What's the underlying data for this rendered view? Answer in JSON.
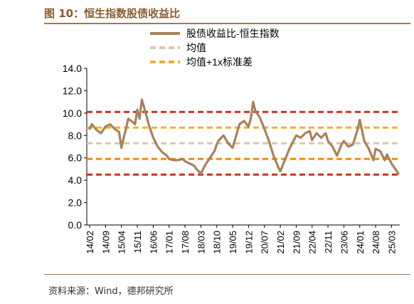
{
  "figure": {
    "title": "图 10：恒生指数股债收益比",
    "source": "资料来源：Wind，德邦研究所"
  },
  "colors": {
    "series": "#A8825A",
    "mean": "#D9C9A8",
    "upper_band": "#F0B030",
    "inner_band": "#F08C10",
    "outer_band": "#C8321E",
    "title": "#8B5A2B"
  },
  "chart_data": {
    "type": "line",
    "ylim": [
      0.0,
      14.0
    ],
    "yticks": [
      "0.0",
      "2.0",
      "4.0",
      "6.0",
      "8.0",
      "10.0",
      "12.0",
      "14.0"
    ],
    "xticks": [
      "14/02",
      "14/09",
      "15/04",
      "15/11",
      "16/06",
      "17/01",
      "17/08",
      "18/03",
      "18/10",
      "19/05",
      "19/12",
      "20/07",
      "21/02",
      "21/09",
      "22/04",
      "22/11",
      "23/06",
      "24/01",
      "24/08",
      "25/03"
    ],
    "legend": [
      "股债收益比-恒生指数",
      "均值",
      "均值+1x标准差"
    ],
    "legend_position": "top-right",
    "grid": false,
    "reference_lines": [
      {
        "name": "upper-2sd",
        "value": 10.1,
        "style": "outer_band"
      },
      {
        "name": "upper-1sd",
        "value": 8.7,
        "style": "upper_band"
      },
      {
        "name": "mean",
        "value": 7.3,
        "style": "mean"
      },
      {
        "name": "lower-1sd",
        "value": 5.9,
        "style": "inner_band"
      },
      {
        "name": "lower-2sd",
        "value": 4.5,
        "style": "outer_band"
      }
    ],
    "series": [
      {
        "name": "股债收益比-恒生指数",
        "x": [
          "14/02",
          "14/03",
          "14/05",
          "14/07",
          "14/09",
          "14/11",
          "15/01",
          "15/03",
          "15/04",
          "15/05",
          "15/06",
          "15/07",
          "15/09",
          "15/10",
          "15/11",
          "15/12",
          "16/01",
          "16/02",
          "16/03",
          "16/04",
          "16/06",
          "16/08",
          "16/10",
          "16/12",
          "17/01",
          "17/03",
          "17/05",
          "17/07",
          "17/08",
          "17/10",
          "17/12",
          "18/01",
          "18/03",
          "18/05",
          "18/07",
          "18/09",
          "18/10",
          "18/11",
          "19/01",
          "19/03",
          "19/05",
          "19/07",
          "19/08",
          "19/10",
          "19/12",
          "20/01",
          "20/02",
          "20/03",
          "20/05",
          "20/07",
          "20/09",
          "20/11",
          "21/01",
          "21/02",
          "21/04",
          "21/06",
          "21/08",
          "21/09",
          "21/11",
          "22/01",
          "22/03",
          "22/04",
          "22/06",
          "22/08",
          "22/10",
          "22/11",
          "23/01",
          "23/03",
          "23/05",
          "23/06",
          "23/08",
          "23/10",
          "23/12",
          "24/01",
          "24/03",
          "24/05",
          "24/07",
          "24/08",
          "24/10",
          "24/12",
          "25/01",
          "25/03",
          "25/04",
          "25/06"
        ],
        "values": [
          8.6,
          9.0,
          8.5,
          8.2,
          8.8,
          9.0,
          8.6,
          8.3,
          6.9,
          7.8,
          8.6,
          9.5,
          9.2,
          9.0,
          10.3,
          9.5,
          11.2,
          10.5,
          9.8,
          9.0,
          7.8,
          7.0,
          6.5,
          6.2,
          5.9,
          5.8,
          5.8,
          5.9,
          5.7,
          5.5,
          5.3,
          5.0,
          4.6,
          5.4,
          6.0,
          6.6,
          7.2,
          7.6,
          8.0,
          7.3,
          6.9,
          8.3,
          9.0,
          9.3,
          8.8,
          9.5,
          11.0,
          10.2,
          9.6,
          8.6,
          7.5,
          6.2,
          5.2,
          4.8,
          5.8,
          6.8,
          7.6,
          8.0,
          7.8,
          8.2,
          8.4,
          7.6,
          8.2,
          7.8,
          8.2,
          7.5,
          7.0,
          6.2,
          7.2,
          7.5,
          7.0,
          7.2,
          8.5,
          9.4,
          7.5,
          6.8,
          5.8,
          6.8,
          6.6,
          5.8,
          6.3,
          5.5,
          5.2,
          4.6
        ]
      }
    ]
  }
}
